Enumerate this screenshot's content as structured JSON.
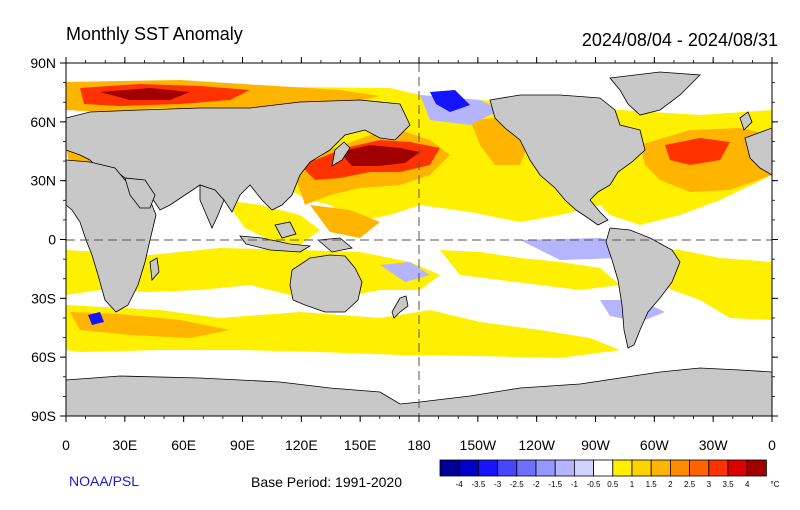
{
  "title": "Monthly SST Anomaly",
  "date_range": "2024/08/04 - 2024/08/31",
  "credit": "NOAA/PSL",
  "base_period": "Base Period: 1991-2020",
  "map": {
    "projection": "equirectangular, Pacific-centered (0 to 360E)",
    "lat_tick_labels": [
      "90N",
      "60N",
      "30N",
      "0",
      "30S",
      "60S",
      "90S"
    ],
    "lon_tick_labels": [
      "0",
      "30E",
      "60E",
      "90E",
      "120E",
      "150E",
      "180",
      "150W",
      "120W",
      "90W",
      "60W",
      "30W",
      "0"
    ],
    "dashed_reference_lines": [
      "equator",
      "180 meridian"
    ],
    "land_color": "#c8c8c8",
    "ocean_base_color": "#ffffff"
  },
  "colorbar": {
    "unit": "°C",
    "tick_labels": [
      "-4",
      "-3.5",
      "-3",
      "-2.5",
      "-2",
      "-1.5",
      "-1",
      "-0.5",
      "0.5",
      "1",
      "1.5",
      "2",
      "2.5",
      "3",
      "3.5",
      "4"
    ],
    "colors": [
      "#000096",
      "#0000c8",
      "#1414ff",
      "#4646ff",
      "#6e6eff",
      "#9696ff",
      "#b4b4ff",
      "#d2d2ff",
      "#ffffff",
      "#fff000",
      "#ffd200",
      "#ffb400",
      "#ff8c00",
      "#ff6400",
      "#ff3200",
      "#dc0000",
      "#a00000"
    ]
  }
}
